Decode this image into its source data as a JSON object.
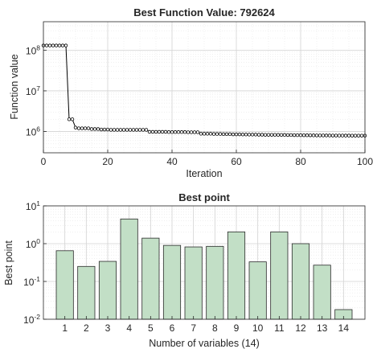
{
  "chart_data": [
    {
      "type": "line",
      "title": "Best Function Value: 792624",
      "xlabel": "Iteration",
      "ylabel": "Function value",
      "xlim": [
        0,
        100
      ],
      "ylim": [
        300000,
        500000000
      ],
      "yscale": "log",
      "grid": true,
      "x_ticks": [
        "0",
        "20",
        "40",
        "60",
        "80",
        "100"
      ],
      "y_ticks": [
        {
          "base": "10",
          "exp": "6",
          "value": 1000000
        },
        {
          "base": "10",
          "exp": "7",
          "value": 10000000
        },
        {
          "base": "10",
          "exp": "8",
          "value": 100000000
        }
      ],
      "line_color": "#000000",
      "marker": "circle-open",
      "series": [
        {
          "x": [
            0,
            1,
            2,
            3,
            4,
            5,
            6,
            7,
            8,
            9,
            10,
            11,
            12,
            13,
            14,
            15,
            16,
            17,
            18,
            19,
            20,
            21,
            22,
            23,
            24,
            25,
            26,
            27,
            28,
            29,
            30,
            31,
            32,
            33,
            34,
            35,
            36,
            37,
            38,
            39,
            40,
            41,
            42,
            43,
            44,
            45,
            46,
            47,
            48,
            49,
            50,
            51,
            52,
            53,
            54,
            55,
            56,
            57,
            58,
            59,
            60,
            61,
            62,
            63,
            64,
            65,
            66,
            67,
            68,
            69,
            70,
            71,
            72,
            73,
            74,
            75,
            76,
            77,
            78,
            79,
            80,
            81,
            82,
            83,
            84,
            85,
            86,
            87,
            88,
            89,
            90,
            91,
            92,
            93,
            94,
            95,
            96,
            97,
            98,
            99,
            100
          ],
          "values": [
            130000000,
            130000000,
            130000000,
            130000000,
            130000000,
            130000000,
            130000000,
            130000000,
            2000000,
            2000000,
            1250000,
            1200000,
            1200000,
            1200000,
            1200000,
            1150000,
            1150000,
            1150000,
            1120000,
            1120000,
            1120000,
            1100000,
            1100000,
            1100000,
            1100000,
            1100000,
            1100000,
            1100000,
            1100000,
            1100000,
            1100000,
            1100000,
            1100000,
            980000,
            980000,
            980000,
            980000,
            980000,
            980000,
            970000,
            970000,
            970000,
            970000,
            970000,
            970000,
            960000,
            960000,
            960000,
            960000,
            880000,
            880000,
            880000,
            880000,
            870000,
            870000,
            870000,
            860000,
            860000,
            860000,
            850000,
            850000,
            850000,
            845000,
            845000,
            840000,
            840000,
            840000,
            835000,
            835000,
            830000,
            830000,
            830000,
            828000,
            826000,
            824000,
            822000,
            820000,
            818000,
            816000,
            814000,
            812000,
            810000,
            808000,
            806000,
            804000,
            802000,
            800000,
            800000,
            799000,
            798000,
            797000,
            796000,
            795000,
            795000,
            794000,
            794000,
            793000,
            793000,
            793000,
            792624,
            792624
          ]
        }
      ]
    },
    {
      "type": "bar",
      "title": "Best point",
      "xlabel": "Number of variables (14)",
      "ylabel": "Best point",
      "ylim": [
        0.01,
        10
      ],
      "yscale": "log",
      "grid": true,
      "categories": [
        "1",
        "2",
        "3",
        "4",
        "5",
        "6",
        "7",
        "8",
        "9",
        "10",
        "11",
        "12",
        "13",
        "14"
      ],
      "values": [
        0.65,
        0.25,
        0.34,
        4.5,
        1.4,
        0.9,
        0.82,
        0.85,
        2.05,
        0.33,
        2.05,
        1.0,
        0.27,
        0.018
      ],
      "y_ticks": [
        {
          "base": "10",
          "exp": "-2",
          "value": 0.01
        },
        {
          "base": "10",
          "exp": "-1",
          "value": 0.1
        },
        {
          "base": "10",
          "exp": "0",
          "value": 1
        },
        {
          "base": "10",
          "exp": "1",
          "value": 10
        }
      ],
      "bar_color": "#c2dfc6",
      "bar_edge": "#2a2a2a"
    }
  ]
}
